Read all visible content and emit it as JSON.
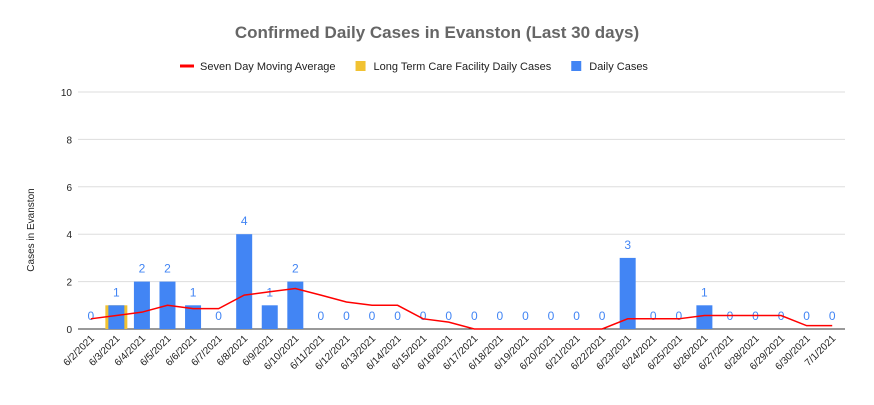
{
  "chart_data": {
    "type": "bar",
    "title": "Confirmed Daily Cases in Evanston (Last 30 days)",
    "y_label": "Cases in Evanston",
    "categories": [
      "6/2/2021",
      "6/3/2021",
      "6/4/2021",
      "6/5/2021",
      "6/6/2021",
      "6/7/2021",
      "6/8/2021",
      "6/9/2021",
      "6/10/2021",
      "6/11/2021",
      "6/12/2021",
      "6/13/2021",
      "6/14/2021",
      "6/15/2021",
      "6/16/2021",
      "6/17/2021",
      "6/18/2021",
      "6/19/2021",
      "6/20/2021",
      "6/21/2021",
      "6/22/2021",
      "6/23/2021",
      "6/24/2021",
      "6/25/2021",
      "6/26/2021",
      "6/27/2021",
      "6/28/2021",
      "6/29/2021",
      "6/30/2021",
      "7/1/2021"
    ],
    "series": [
      {
        "name": "Seven Day Moving Average",
        "type": "line",
        "color": "#ff0000",
        "values": [
          0.43,
          0.57,
          0.71,
          1.0,
          0.86,
          0.86,
          1.43,
          1.57,
          1.71,
          1.43,
          1.14,
          1.0,
          1.0,
          0.43,
          0.29,
          0,
          0,
          0,
          0,
          0,
          0,
          0.43,
          0.43,
          0.43,
          0.57,
          0.57,
          0.57,
          0.57,
          0.14,
          0.14
        ]
      },
      {
        "name": "Long Term Care Facility Daily Cases",
        "type": "bar",
        "color": "#f1c232",
        "values": [
          0,
          1,
          0,
          0,
          0,
          0,
          0,
          0,
          0,
          0,
          0,
          0,
          0,
          0,
          0,
          0,
          0,
          0,
          0,
          0,
          0,
          0,
          0,
          0,
          0,
          0,
          0,
          0,
          0,
          0
        ]
      },
      {
        "name": "Daily Cases",
        "type": "bar",
        "color": "#4285f4",
        "values": [
          0,
          1,
          2,
          2,
          1,
          0,
          4,
          1,
          2,
          0,
          0,
          0,
          0,
          0,
          0,
          0,
          0,
          0,
          0,
          0,
          0,
          3,
          0,
          0,
          1,
          0,
          0,
          0,
          0,
          0
        ]
      }
    ],
    "ylim": [
      0,
      10
    ],
    "yticks": [
      0,
      2,
      4,
      6,
      8,
      10
    ],
    "grid": true
  }
}
